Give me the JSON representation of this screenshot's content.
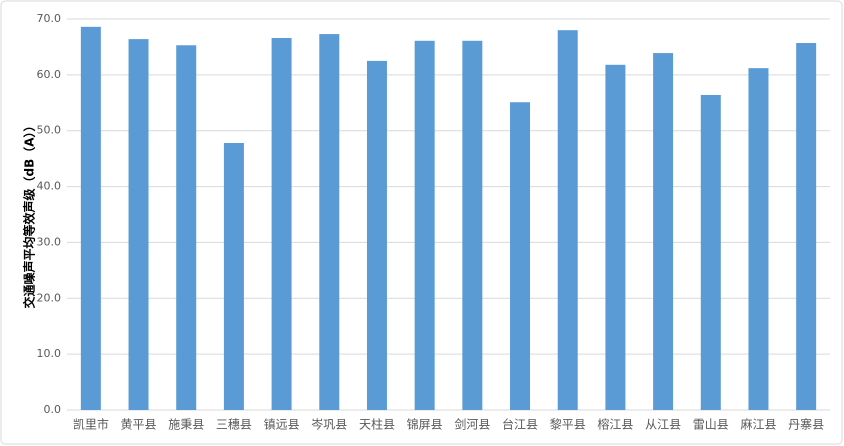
{
  "chart_data": {
    "type": "bar",
    "y_label": "交通噪声平均等效声级（dB（A））",
    "categories": [
      "凯里市",
      "黄平县",
      "施秉县",
      "三穗县",
      "镇远县",
      "岑巩县",
      "天柱县",
      "锦屏县",
      "剑河县",
      "台江县",
      "黎平县",
      "榕江县",
      "从江县",
      "雷山县",
      "麻江县",
      "丹寨县"
    ],
    "values": [
      68.6,
      66.4,
      65.3,
      47.8,
      66.6,
      67.3,
      62.5,
      66.1,
      66.1,
      55.1,
      68.0,
      61.8,
      63.9,
      56.4,
      61.2,
      65.7
    ],
    "color": "#5b9bd5",
    "ylim": [
      0,
      70
    ],
    "yticks": [
      {
        "value": 0,
        "label": "0.0"
      },
      {
        "value": 10,
        "label": "10.0"
      },
      {
        "value": 20,
        "label": "20.0"
      },
      {
        "value": 30,
        "label": "30.0"
      },
      {
        "value": 40,
        "label": "40.0"
      },
      {
        "value": 50,
        "label": "50.0"
      },
      {
        "value": 60,
        "label": "60.0"
      },
      {
        "value": 70,
        "label": "70.0"
      }
    ],
    "grid": true
  }
}
